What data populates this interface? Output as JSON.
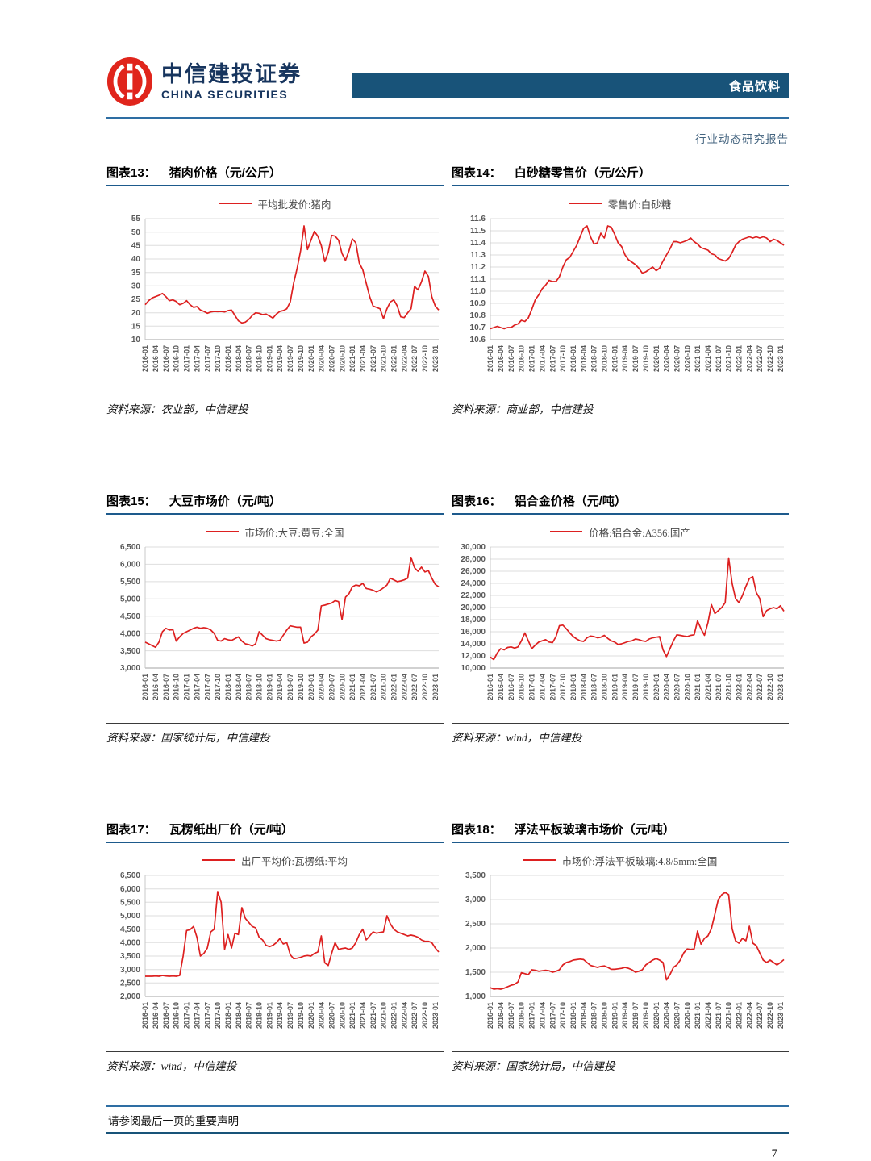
{
  "header": {
    "logo_cn": "中信建投证券",
    "logo_en": "CHINA SECURITIES",
    "banner_label": "食品饮料",
    "report_type": "行业动态研究报告"
  },
  "footer": {
    "disclaimer": "请参阅最后一页的重要声明",
    "page_number": "7"
  },
  "colors": {
    "line_red": "#dd2020",
    "banner_blue": "#185379",
    "header_rule_blue": "#2e6ea3",
    "title_rule_blue": "#1d5a8c",
    "grid_gray": "#dedede",
    "logo_red": "#e0251c",
    "logo_navy": "#17355e"
  },
  "x_labels": [
    "2016-01",
    "2016-04",
    "2016-07",
    "2016-10",
    "2017-01",
    "2017-04",
    "2017-07",
    "2017-10",
    "2018-01",
    "2018-04",
    "2018-07",
    "2018-10",
    "2019-01",
    "2019-04",
    "2019-07",
    "2019-10",
    "2020-01",
    "2020-04",
    "2020-07",
    "2020-10",
    "2021-01",
    "2021-04",
    "2021-07",
    "2021-10",
    "2022-01",
    "2022-04",
    "2022-07",
    "2022-10",
    "2023-01"
  ],
  "chart_data": [
    {
      "type": "line",
      "figure_label": "图表13：",
      "title": "猪肉价格（元/公斤）",
      "legend": "平均批发价:猪肉",
      "source": "资料来源：农业部，中信建投",
      "xlabel": "",
      "ylabel": "",
      "ylim": [
        10,
        55
      ],
      "ystep": 5,
      "y_decimals": 0,
      "thousands": false,
      "x_monthly_start": "2016-01",
      "values": [
        23,
        24.5,
        25.5,
        26,
        26.5,
        27.2,
        26,
        24.5,
        24.8,
        24.2,
        23,
        23.5,
        24.5,
        23,
        22,
        22.3,
        21,
        20.5,
        19.8,
        20.3,
        20.5,
        20.4,
        20.5,
        20.3,
        20.8,
        21,
        19,
        17,
        16.2,
        16.5,
        17.5,
        19,
        20,
        19.8,
        19.3,
        19.5,
        18.8,
        18,
        19.5,
        20.5,
        20.8,
        21.5,
        24,
        31,
        36.5,
        43,
        52.3,
        43.5,
        47,
        50.3,
        48.5,
        45,
        39,
        42.5,
        48.8,
        48.5,
        47,
        42,
        39.5,
        43,
        47.5,
        46,
        38.5,
        36,
        31,
        26,
        22.5,
        22,
        21.5,
        17.8,
        21.5,
        24,
        24.8,
        22.5,
        18.5,
        18.2,
        20,
        21.5,
        29.8,
        28.5,
        31.5,
        35.5,
        33.5,
        26,
        22.5,
        21
      ]
    },
    {
      "type": "line",
      "figure_label": "图表14：",
      "title": "白砂糖零售价（元/公斤）",
      "legend": "零售价:白砂糖",
      "source": "资料来源：商业部，中信建投",
      "xlabel": "",
      "ylabel": "",
      "ylim": [
        10.6,
        11.6
      ],
      "ystep": 0.1,
      "y_decimals": 1,
      "thousands": false,
      "x_monthly_start": "2016-01",
      "values": [
        10.69,
        10.7,
        10.71,
        10.7,
        10.69,
        10.7,
        10.7,
        10.72,
        10.73,
        10.76,
        10.75,
        10.78,
        10.85,
        10.93,
        10.97,
        11.02,
        11.05,
        11.09,
        11.08,
        11.08,
        11.12,
        11.2,
        11.26,
        11.28,
        11.33,
        11.38,
        11.45,
        11.52,
        11.54,
        11.45,
        11.39,
        11.4,
        11.48,
        11.44,
        11.54,
        11.53,
        11.47,
        11.4,
        11.37,
        11.3,
        11.26,
        11.24,
        11.22,
        11.19,
        11.15,
        11.16,
        11.18,
        11.2,
        11.17,
        11.19,
        11.25,
        11.3,
        11.35,
        11.41,
        11.41,
        11.4,
        11.41,
        11.42,
        11.44,
        11.41,
        11.39,
        11.36,
        11.35,
        11.34,
        11.31,
        11.3,
        11.27,
        11.26,
        11.25,
        11.27,
        11.32,
        11.38,
        11.41,
        11.43,
        11.44,
        11.45,
        11.44,
        11.45,
        11.44,
        11.45,
        11.44,
        11.41,
        11.43,
        11.42,
        11.4,
        11.38
      ]
    },
    {
      "type": "line",
      "figure_label": "图表15：",
      "title": "大豆市场价（元/吨）",
      "legend": "市场价:大豆:黄豆:全国",
      "source": "资料来源：国家统计局，中信建投",
      "xlabel": "",
      "ylabel": "",
      "ylim": [
        3000,
        6500
      ],
      "ystep": 500,
      "y_decimals": 0,
      "thousands": true,
      "x_monthly_start": "2016-01",
      "values": [
        3750,
        3700,
        3650,
        3600,
        3750,
        4050,
        4150,
        4100,
        4120,
        3780,
        3900,
        4000,
        4050,
        4100,
        4150,
        4180,
        4150,
        4170,
        4150,
        4100,
        4000,
        3800,
        3780,
        3850,
        3820,
        3800,
        3850,
        3900,
        3780,
        3700,
        3680,
        3640,
        3700,
        4050,
        3950,
        3850,
        3820,
        3800,
        3780,
        3800,
        3950,
        4100,
        4220,
        4200,
        4180,
        4180,
        3720,
        3750,
        3900,
        3980,
        4100,
        4800,
        4820,
        4850,
        4880,
        4950,
        4920,
        4400,
        5050,
        5150,
        5350,
        5400,
        5380,
        5450,
        5300,
        5280,
        5250,
        5200,
        5250,
        5320,
        5400,
        5600,
        5550,
        5500,
        5520,
        5550,
        5600,
        6200,
        5900,
        5800,
        5920,
        5780,
        5820,
        5600,
        5420,
        5350
      ]
    },
    {
      "type": "line",
      "figure_label": "图表16：",
      "title": "铝合金价格（元/吨）",
      "legend": "价格:铝合金:A356:国产",
      "source": "资料来源：wind，中信建投",
      "xlabel": "",
      "ylabel": "",
      "ylim": [
        10000,
        30000
      ],
      "ystep": 2000,
      "y_decimals": 0,
      "thousands": true,
      "x_monthly_start": "2016-01",
      "values": [
        11800,
        11400,
        12500,
        13200,
        13000,
        13400,
        13500,
        13300,
        13500,
        14500,
        15800,
        14500,
        13200,
        13800,
        14300,
        14500,
        14700,
        14300,
        14200,
        15200,
        17000,
        17100,
        16500,
        15800,
        15200,
        14800,
        14500,
        14400,
        15000,
        15300,
        15200,
        15000,
        15100,
        15400,
        14900,
        14500,
        14300,
        13900,
        14000,
        14200,
        14400,
        14500,
        14800,
        14700,
        14500,
        14400,
        14800,
        15000,
        15100,
        15200,
        13000,
        11900,
        13200,
        14500,
        15500,
        15400,
        15300,
        15200,
        15400,
        15500,
        17800,
        16500,
        15400,
        17500,
        20500,
        19000,
        19500,
        20000,
        20800,
        28200,
        24000,
        21500,
        20800,
        22000,
        23500,
        24800,
        25100,
        22500,
        21500,
        18500,
        19500,
        19800,
        20000,
        19800,
        20300,
        19400
      ]
    },
    {
      "type": "line",
      "figure_label": "图表17：",
      "title": "瓦楞纸出厂价（元/吨）",
      "legend": "出厂平均价:瓦楞纸:平均",
      "source": "资料来源：wind，中信建投",
      "xlabel": "",
      "ylabel": "",
      "ylim": [
        2000,
        6500
      ],
      "ystep": 500,
      "y_decimals": 0,
      "thousands": true,
      "x_monthly_start": "2016-01",
      "values": [
        2750,
        2750,
        2750,
        2760,
        2750,
        2780,
        2760,
        2750,
        2760,
        2750,
        2780,
        3500,
        4450,
        4480,
        4600,
        4200,
        3500,
        3600,
        3800,
        4400,
        4500,
        5900,
        5500,
        3750,
        4300,
        3800,
        4350,
        4300,
        5300,
        4900,
        4750,
        4600,
        4550,
        4200,
        4100,
        3900,
        3850,
        3900,
        4000,
        4150,
        3950,
        4000,
        3550,
        3400,
        3420,
        3450,
        3500,
        3520,
        3500,
        3600,
        3650,
        4250,
        3250,
        3150,
        3600,
        4000,
        3750,
        3780,
        3800,
        3750,
        3800,
        4000,
        4300,
        4500,
        4100,
        4250,
        4400,
        4350,
        4380,
        4400,
        5000,
        4700,
        4500,
        4400,
        4350,
        4300,
        4250,
        4280,
        4250,
        4200,
        4100,
        4050,
        4050,
        4000,
        3800,
        3650
      ]
    },
    {
      "type": "line",
      "figure_label": "图表18：",
      "title": "浮法平板玻璃市场价（元/吨）",
      "legend": "市场价:浮法平板玻璃:4.8/5mm:全国",
      "source": "资料来源：国家统计局，中信建投",
      "xlabel": "",
      "ylabel": "",
      "ylim": [
        1000,
        3500
      ],
      "ystep": 500,
      "y_decimals": 0,
      "thousands": true,
      "x_monthly_start": "2016-01",
      "values": [
        1180,
        1150,
        1160,
        1150,
        1170,
        1200,
        1230,
        1250,
        1300,
        1490,
        1470,
        1450,
        1550,
        1540,
        1520,
        1530,
        1540,
        1530,
        1500,
        1520,
        1550,
        1650,
        1700,
        1720,
        1750,
        1760,
        1770,
        1760,
        1700,
        1640,
        1620,
        1600,
        1620,
        1630,
        1600,
        1560,
        1560,
        1570,
        1580,
        1600,
        1580,
        1550,
        1500,
        1520,
        1550,
        1650,
        1700,
        1750,
        1780,
        1750,
        1700,
        1340,
        1450,
        1600,
        1650,
        1750,
        1900,
        1980,
        1970,
        1980,
        2350,
        2080,
        2200,
        2250,
        2400,
        2700,
        3000,
        3100,
        3150,
        3100,
        2400,
        2150,
        2100,
        2200,
        2150,
        2450,
        2100,
        2050,
        1900,
        1750,
        1700,
        1750,
        1700,
        1650,
        1700,
        1760
      ]
    }
  ]
}
